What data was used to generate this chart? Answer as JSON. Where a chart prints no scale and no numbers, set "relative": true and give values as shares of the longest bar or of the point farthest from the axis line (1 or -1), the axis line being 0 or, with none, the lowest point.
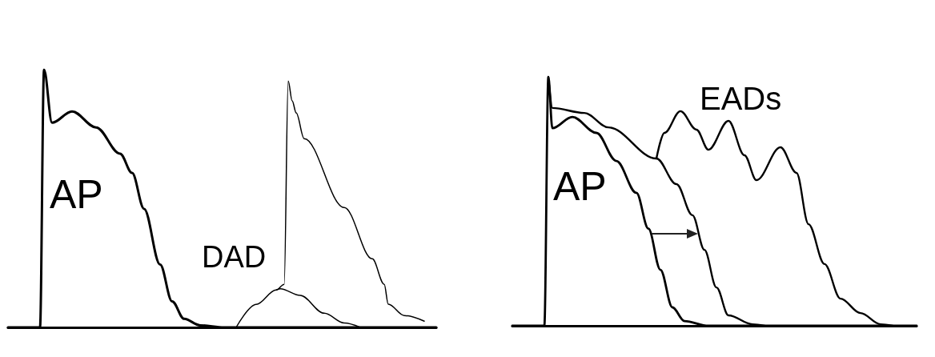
{
  "chart_data": [
    {
      "type": "line",
      "relative": true,
      "grid": false,
      "line_style": "solid",
      "annotations": [
        "AP",
        "DAD"
      ],
      "categories": [
        null,
        null,
        null,
        null,
        null,
        null,
        null,
        null,
        null,
        null,
        null,
        null,
        null,
        null,
        null,
        null,
        null,
        null,
        null,
        null,
        null,
        null,
        null,
        null,
        null,
        null,
        null,
        null,
        null,
        null,
        null,
        null,
        null,
        null,
        null,
        null,
        null,
        null,
        null,
        null,
        null,
        null,
        null,
        null,
        null,
        null,
        null,
        null,
        null,
        null,
        null,
        null,
        null,
        null,
        null,
        null,
        null,
        null,
        null,
        null,
        null,
        null,
        null,
        null,
        null,
        null,
        null,
        null,
        null,
        null,
        null,
        null,
        null,
        null,
        null,
        null,
        null,
        null,
        null,
        null,
        null,
        null,
        null,
        null,
        null,
        null,
        null,
        null,
        null,
        null,
        null,
        null,
        null,
        null,
        null,
        null,
        null,
        null,
        null,
        null,
        null,
        null,
        null,
        null,
        null,
        null,
        null,
        null
      ],
      "series": [
        {
          "color": "#000000",
          "values": [
            0,
            null,
            null,
            null,
            null,
            null,
            null,
            null,
            0,
            1.0,
            null,
            0.794,
            null,
            null,
            null,
            null,
            0.838,
            null,
            null,
            null,
            null,
            null,
            0.776,
            null,
            null,
            null,
            null,
            null,
            0.674,
            null,
            null,
            0.599,
            null,
            null,
            0.46,
            null,
            null,
            null,
            0.244,
            null,
            null,
            0.101,
            null,
            null,
            0.033,
            null,
            null,
            null,
            0.008,
            null,
            null,
            null,
            null,
            null,
            0,
            null,
            null,
            null,
            null,
            null,
            null,
            null,
            null,
            null,
            null,
            null,
            null,
            null,
            null,
            null,
            null,
            null,
            null,
            null,
            null,
            null,
            null,
            null,
            null,
            null,
            null,
            null,
            null,
            null,
            null,
            null,
            null,
            null,
            null,
            null,
            null,
            null,
            null,
            null,
            null,
            null,
            null,
            null,
            null,
            null,
            null,
            null,
            null,
            null,
            null,
            null,
            null,
            0
          ]
        },
        {
          "color": "#000000",
          "values": [
            null,
            null,
            null,
            null,
            null,
            null,
            null,
            null,
            null,
            null,
            null,
            null,
            null,
            null,
            null,
            null,
            null,
            null,
            null,
            null,
            null,
            null,
            null,
            null,
            null,
            null,
            null,
            null,
            null,
            null,
            null,
            null,
            null,
            null,
            null,
            null,
            null,
            null,
            null,
            null,
            null,
            null,
            null,
            null,
            null,
            null,
            null,
            null,
            null,
            null,
            null,
            null,
            null,
            null,
            null,
            null,
            null,
            0,
            null,
            null,
            null,
            null,
            0.089,
            null,
            null,
            null,
            null,
            0.145,
            null,
            0.167,
            0.956,
            0.879,
            0.832,
            null,
            0.732,
            null,
            null,
            null,
            null,
            null,
            null,
            null,
            null,
            null,
            0.465,
            null,
            null,
            null,
            null,
            null,
            null,
            0.266,
            null,
            null,
            0.167,
            0.09,
            null,
            null,
            null,
            0.046,
            null,
            null,
            null,
            null,
            0.024,
            null,
            null,
            null
          ]
        },
        {
          "color": "#000000",
          "values": [
            null,
            null,
            null,
            null,
            null,
            null,
            null,
            null,
            null,
            null,
            null,
            null,
            null,
            null,
            null,
            null,
            null,
            null,
            null,
            null,
            null,
            null,
            null,
            null,
            null,
            null,
            null,
            null,
            null,
            null,
            null,
            null,
            null,
            null,
            null,
            null,
            null,
            null,
            null,
            null,
            null,
            null,
            null,
            null,
            null,
            null,
            null,
            null,
            null,
            null,
            null,
            null,
            null,
            null,
            null,
            null,
            null,
            null,
            null,
            null,
            null,
            null,
            null,
            null,
            null,
            null,
            null,
            0.145,
            0.15,
            null,
            null,
            null,
            null,
            0.124,
            null,
            null,
            null,
            null,
            null,
            0.055,
            null,
            null,
            null,
            null,
            0.017,
            null,
            null,
            null,
            0,
            null,
            null,
            null,
            null,
            null,
            null,
            null,
            null,
            null,
            null,
            null,
            null,
            null,
            null,
            null,
            null,
            null,
            null,
            null
          ]
        }
      ]
    },
    {
      "type": "line",
      "relative": true,
      "grid": false,
      "line_style": "solid",
      "annotations": [
        "AP",
        "EADs"
      ],
      "categories": [
        null,
        null,
        null,
        null,
        null,
        null,
        null,
        null,
        null,
        null,
        null,
        null,
        null,
        null,
        null,
        null,
        null,
        null,
        null,
        null,
        null,
        null,
        null,
        null,
        null,
        null,
        null,
        null,
        null,
        null,
        null,
        null,
        null,
        null,
        null,
        null,
        null,
        null,
        null,
        null,
        null,
        null,
        null,
        null,
        null,
        null,
        null,
        null,
        null,
        null,
        null,
        null,
        null,
        null,
        null,
        null,
        null,
        null,
        null,
        null,
        null,
        null,
        null,
        null,
        null,
        null,
        null,
        null,
        null,
        null,
        null,
        null,
        null,
        null,
        null,
        null,
        null,
        null,
        null,
        null,
        null,
        null,
        null,
        null,
        null,
        null,
        null,
        null,
        null,
        null,
        null,
        null,
        null,
        null,
        null,
        null,
        null,
        null,
        null,
        null,
        null,
        null
      ],
      "series": [
        {
          "color": "#000000",
          "values": [
            0,
            null,
            null,
            null,
            null,
            null,
            null,
            null,
            0,
            1.0,
            0.794,
            null,
            null,
            null,
            null,
            0.839,
            null,
            null,
            null,
            null,
            null,
            0.775,
            null,
            null,
            null,
            null,
            0.662,
            null,
            null,
            null,
            null,
            0.534,
            null,
            null,
            0.39,
            null,
            null,
            0.225,
            null,
            null,
            0.074,
            null,
            null,
            0.019,
            null,
            null,
            null,
            null,
            null,
            0,
            null,
            null,
            null,
            null,
            null,
            null,
            null,
            null,
            null,
            null,
            null,
            null,
            null,
            null,
            null,
            null,
            null,
            null,
            null,
            null,
            null,
            null,
            null,
            null,
            null,
            null,
            null,
            null,
            null,
            null,
            null,
            null,
            null,
            null,
            null,
            null,
            null,
            null,
            null,
            null,
            null,
            null,
            null,
            null,
            null,
            null,
            null,
            null,
            null,
            null,
            null,
            0
          ]
        },
        {
          "color": "#000000",
          "values": [
            null,
            null,
            null,
            null,
            null,
            null,
            null,
            null,
            null,
            1.0,
            0.875,
            null,
            null,
            null,
            null,
            null,
            null,
            null,
            0.855,
            null,
            null,
            null,
            null,
            null,
            0.797,
            null,
            null,
            null,
            null,
            null,
            null,
            null,
            null,
            null,
            null,
            null,
            0.672,
            null,
            null,
            null,
            null,
            0.569,
            null,
            null,
            null,
            0.444,
            null,
            null,
            0.305,
            null,
            null,
            0.154,
            null,
            null,
            0.042,
            null,
            null,
            null,
            null,
            null,
            0.006,
            null,
            null,
            0,
            null,
            null,
            null,
            null,
            null,
            null,
            null,
            null,
            null,
            null,
            null,
            null,
            null,
            null,
            null,
            null,
            null,
            null,
            null,
            null,
            null,
            null,
            null,
            null,
            null,
            null,
            null,
            null,
            null,
            null,
            null,
            null,
            null,
            null,
            null,
            null,
            null,
            null
          ]
        },
        {
          "color": "#000000",
          "values": [
            null,
            null,
            null,
            null,
            null,
            null,
            null,
            null,
            null,
            null,
            null,
            null,
            null,
            null,
            null,
            null,
            null,
            null,
            null,
            null,
            null,
            null,
            null,
            null,
            null,
            null,
            null,
            null,
            null,
            null,
            null,
            null,
            null,
            null,
            null,
            null,
            0.672,
            null,
            0.775,
            null,
            null,
            null,
            0.862,
            null,
            null,
            null,
            0.788,
            null,
            null,
            0.707,
            null,
            null,
            null,
            null,
            0.823,
            null,
            null,
            null,
            0.685,
            null,
            null,
            0.585,
            null,
            null,
            null,
            null,
            null,
            0.717,
            null,
            null,
            null,
            0.614,
            null,
            null,
            0.408,
            null,
            null,
            null,
            0.248,
            null,
            null,
            null,
            0.109,
            null,
            null,
            null,
            null,
            0.051,
            null,
            null,
            null,
            null,
            0.006,
            null,
            null,
            0,
            null,
            null,
            null,
            null,
            null,
            null
          ]
        }
      ]
    }
  ]
}
